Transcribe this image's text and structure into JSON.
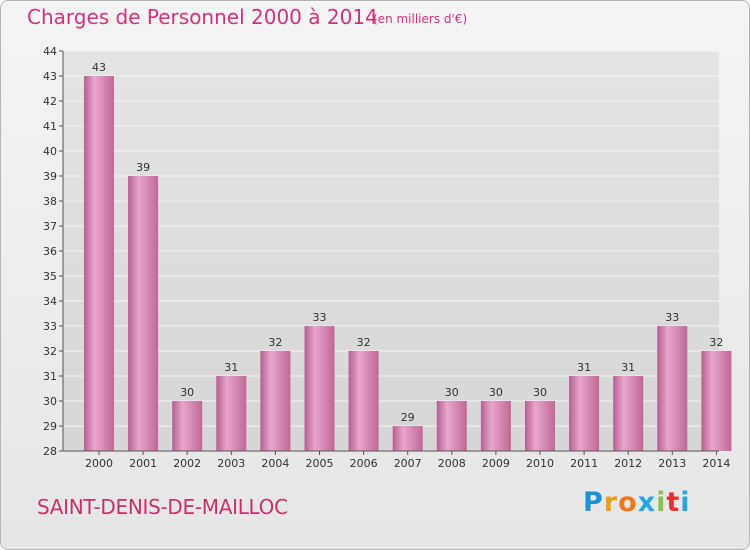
{
  "header": {
    "title": "Charges de Personnel 2000 à 2014",
    "subtitle": "(en milliers d'€)"
  },
  "footer": {
    "city": "SAINT-DENIS-DE-MAILLOC",
    "logo": {
      "letters": [
        "P",
        "r",
        "o",
        "x",
        "i",
        "t",
        "i"
      ],
      "colors": [
        "#1f8fd6",
        "#e8a11a",
        "#f07a1a",
        "#2aa6dd",
        "#8ac34a",
        "#e6322e",
        "#2aa6dd"
      ]
    }
  },
  "chart_data": {
    "type": "bar",
    "categories": [
      "2000",
      "2001",
      "2002",
      "2003",
      "2004",
      "2005",
      "2006",
      "2007",
      "2008",
      "2009",
      "2010",
      "2011",
      "2012",
      "2013",
      "2014"
    ],
    "values": [
      43,
      39,
      30,
      31,
      32,
      33,
      32,
      29,
      30,
      30,
      30,
      31,
      31,
      33,
      32
    ],
    "data_labels": [
      "43",
      "39",
      "30",
      "31",
      "32",
      "33",
      "32",
      "29",
      "30",
      "30",
      "30",
      "31",
      "31",
      "33",
      "32"
    ],
    "yticks": [
      "28",
      "29",
      "30",
      "31",
      "32",
      "33",
      "34",
      "35",
      "36",
      "37",
      "38",
      "39",
      "40",
      "41",
      "42",
      "43",
      "44"
    ],
    "ylim": [
      28,
      44
    ],
    "title": "Charges de Personnel 2000 à 2014",
    "subtitle": "(en milliers d'€)",
    "xlabel": "",
    "ylabel": "",
    "grid": true,
    "bar_color": "#c8689c"
  }
}
